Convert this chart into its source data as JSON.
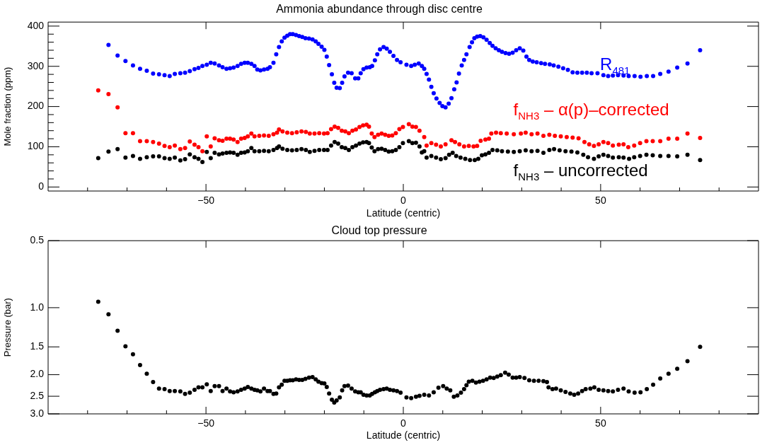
{
  "chart_data": [
    {
      "type": "scatter",
      "title": "Ammonia abundance through disc centre",
      "xlabel": "Latitude (centric)",
      "ylabel": "Mole fraction (ppm)",
      "marker": "circle",
      "xlim": [
        -90,
        90
      ],
      "ylim": [
        -10,
        410
      ],
      "xticks": [
        {
          "value": -80,
          "label": null
        },
        {
          "value": -70,
          "label": null
        },
        {
          "value": -60,
          "label": null
        },
        {
          "value": -50,
          "label": "−50"
        },
        {
          "value": -40,
          "label": null
        },
        {
          "value": -30,
          "label": null
        },
        {
          "value": -20,
          "label": null
        },
        {
          "value": -10,
          "label": null
        },
        {
          "value": 0,
          "label": "0"
        },
        {
          "value": 10,
          "label": null
        },
        {
          "value": 20,
          "label": null
        },
        {
          "value": 30,
          "label": null
        },
        {
          "value": 40,
          "label": null
        },
        {
          "value": 50,
          "label": "50"
        },
        {
          "value": 60,
          "label": null
        },
        {
          "value": 70,
          "label": null
        },
        {
          "value": 80,
          "label": null
        }
      ],
      "yticks": [
        0,
        {
          "value": 20,
          "label": null
        },
        {
          "value": 40,
          "label": null
        },
        {
          "value": 60,
          "label": null
        },
        {
          "value": 80,
          "label": null
        },
        100,
        {
          "value": 120,
          "label": null
        },
        {
          "value": 140,
          "label": null
        },
        {
          "value": 160,
          "label": null
        },
        {
          "value": 180,
          "label": null
        },
        200,
        {
          "value": 220,
          "label": null
        },
        {
          "value": 240,
          "label": null
        },
        {
          "value": 260,
          "label": null
        },
        {
          "value": 280,
          "label": null
        },
        300,
        {
          "value": 320,
          "label": null
        },
        {
          "value": 340,
          "label": null
        },
        {
          "value": 360,
          "label": null
        },
        {
          "value": 380,
          "label": null
        },
        400
      ],
      "series": [
        {
          "name": "R$_{481}$",
          "color": "#0000ff",
          "x": [
            -74.7,
            -72.4,
            -70.4,
            -68.5,
            -66.7,
            -65.0,
            -63.4,
            -61.9,
            -60.5,
            -59.2,
            -57.9,
            -56.5,
            -55.3,
            -54.1,
            -52.9,
            -51.9,
            -50.9,
            -49.8,
            -48.8,
            -47.8,
            -46.7,
            -45.8,
            -44.8,
            -43.9,
            -43.0,
            -42.0,
            -41.1,
            -40.2,
            -39.4,
            -38.5,
            -37.7,
            -37.0,
            -36.2,
            -35.3,
            -34.4,
            -33.8,
            -32.9,
            -32.2,
            -31.5,
            -30.8,
            -30.1,
            -29.4,
            -28.7,
            -28.0,
            -27.2,
            -26.4,
            -25.6,
            -24.8,
            -23.9,
            -23.0,
            -22.2,
            -21.5,
            -20.7,
            -20.0,
            -19.4,
            -18.8,
            -18.1,
            -17.5,
            -16.9,
            -16.1,
            -15.5,
            -14.9,
            -14.0,
            -13.1,
            -12.2,
            -11.4,
            -10.8,
            -10.1,
            -9.3,
            -8.5,
            -7.9,
            -7.2,
            -6.6,
            -5.9,
            -5.0,
            -4.2,
            -3.4,
            -2.5,
            -1.6,
            -0.7,
            0.8,
            2.0,
            2.9,
            3.9,
            4.7,
            5.3,
            5.9,
            6.5,
            7.1,
            7.7,
            8.4,
            9.2,
            9.9,
            10.7,
            11.5,
            12.2,
            12.9,
            13.5,
            14.1,
            14.8,
            15.4,
            16.0,
            16.8,
            17.4,
            18.0,
            18.7,
            19.5,
            20.3,
            21.1,
            21.9,
            22.6,
            23.4,
            24.2,
            25.0,
            25.9,
            26.8,
            27.7,
            28.6,
            29.5,
            30.4,
            31.2,
            31.9,
            32.8,
            33.8,
            34.9,
            35.9,
            37.1,
            38.1,
            39.3,
            40.5,
            41.7,
            42.9,
            44.1,
            45.3,
            46.5,
            47.7,
            49.2,
            50.7,
            51.9,
            53.1,
            54.4,
            55.8,
            57.1,
            58.6,
            60.1,
            61.7,
            63.3,
            65.1,
            67.2,
            69.4,
            72.0,
            75.2
          ],
          "values": [
            353,
            327,
            313,
            302,
            294,
            289,
            282,
            280,
            278,
            276,
            281,
            283,
            284,
            288,
            293,
            296,
            301,
            304,
            309,
            307,
            302,
            298,
            294,
            295,
            297,
            301,
            306,
            309,
            309,
            306,
            301,
            292,
            290,
            292,
            294,
            298,
            309,
            330,
            348,
            362,
            371,
            376,
            380,
            380,
            378,
            375,
            373,
            370,
            369,
            367,
            362,
            356,
            349,
            341,
            324,
            303,
            280,
            259,
            247,
            246,
            259,
            275,
            284,
            283,
            270,
            270,
            283,
            293,
            297,
            298,
            301,
            315,
            330,
            342,
            348,
            344,
            336,
            326,
            316,
            310,
            304,
            301,
            304,
            307,
            301,
            294,
            281,
            267,
            249,
            233,
            220,
            209,
            201,
            198,
            207,
            221,
            243,
            260,
            282,
            302,
            316,
            330,
            348,
            360,
            370,
            374,
            375,
            372,
            366,
            358,
            351,
            345,
            340,
            336,
            333,
            331,
            334,
            340,
            345,
            339,
            324,
            316,
            312,
            310,
            308,
            306,
            305,
            302,
            299,
            295,
            291,
            285,
            284,
            284,
            284,
            283,
            283,
            278,
            276,
            277,
            278,
            277,
            276,
            276,
            274,
            276,
            276,
            281,
            287,
            297,
            307,
            340
          ]
        },
        {
          "name": "f$_{NH3}$ – α(p)–corrected",
          "color": "#ff0000",
          "x": [
            -77.3,
            -74.7,
            -72.4,
            -70.4,
            -68.5,
            -66.7,
            -65.0,
            -63.4,
            -61.9,
            -60.5,
            -59.2,
            -57.9,
            -56.5,
            -55.3,
            -54.1,
            -52.9,
            -51.9,
            -50.9,
            -49.8,
            -48.8,
            -47.8,
            -46.7,
            -45.8,
            -44.8,
            -43.9,
            -43.0,
            -42.0,
            -41.1,
            -40.2,
            -39.4,
            -38.5,
            -37.7,
            -36.5,
            -35.3,
            -34.1,
            -32.9,
            -32.0,
            -31.5,
            -30.6,
            -29.4,
            -28.2,
            -27.0,
            -25.8,
            -24.7,
            -23.7,
            -22.5,
            -21.3,
            -20.1,
            -19.2,
            -18.3,
            -17.4,
            -16.5,
            -15.6,
            -14.7,
            -13.8,
            -12.9,
            -12.0,
            -11.1,
            -10.2,
            -9.3,
            -8.7,
            -8.0,
            -7.3,
            -6.4,
            -5.5,
            -4.6,
            -3.7,
            -2.8,
            -1.9,
            -1.0,
            -0.1,
            1.4,
            2.3,
            3.2,
            4.1,
            5.3,
            5.9,
            7.1,
            8.3,
            9.5,
            10.7,
            12.2,
            13.1,
            14.2,
            15.4,
            16.6,
            17.8,
            18.7,
            19.6,
            20.8,
            21.7,
            22.3,
            23.5,
            24.7,
            26.2,
            28.0,
            29.8,
            31.0,
            32.5,
            34.0,
            35.5,
            37.0,
            38.4,
            39.9,
            41.4,
            42.9,
            44.4,
            45.9,
            47.1,
            48.3,
            49.5,
            50.7,
            51.9,
            53.1,
            54.6,
            55.8,
            57.0,
            58.5,
            60.0,
            61.6,
            63.2,
            65.1,
            67.2,
            69.4,
            72.0,
            75.2
          ],
          "values": [
            240,
            231,
            198,
            134,
            134,
            114,
            114,
            112,
            108,
            102,
            99,
            103,
            94,
            97,
            113,
            105,
            99,
            89,
            126,
            101,
            121,
            116,
            115,
            120,
            120,
            118,
            112,
            120,
            122,
            126,
            133,
            126,
            127,
            128,
            127,
            131,
            135,
            143,
            138,
            135,
            134,
            136,
            138,
            137,
            133,
            133,
            134,
            133,
            134,
            144,
            150,
            147,
            140,
            138,
            134,
            140,
            143,
            149,
            153,
            155,
            150,
            133,
            124,
            130,
            133,
            130,
            127,
            128,
            134,
            144,
            149,
            156,
            150,
            149,
            140,
            124,
            103,
            109,
            105,
            101,
            106,
            116,
            112,
            106,
            101,
            102,
            101,
            102,
            115,
            118,
            120,
            133,
            135,
            134,
            133,
            131,
            133,
            135,
            131,
            133,
            127,
            130,
            127,
            126,
            124,
            123,
            121,
            112,
            106,
            102,
            106,
            112,
            109,
            103,
            105,
            106,
            99,
            103,
            109,
            114,
            114,
            114,
            120,
            120,
            133,
            122
          ]
        },
        {
          "name": "f$_{NH3}$ – uncorrected",
          "color": "#000000",
          "x": [
            -77.3,
            -74.7,
            -72.4,
            -70.4,
            -68.5,
            -66.7,
            -65.0,
            -63.4,
            -61.9,
            -60.5,
            -59.2,
            -57.9,
            -56.5,
            -55.3,
            -54.1,
            -52.9,
            -51.9,
            -50.9,
            -49.8,
            -48.8,
            -47.8,
            -46.7,
            -45.8,
            -44.8,
            -43.9,
            -43.0,
            -42.0,
            -41.1,
            -40.2,
            -39.4,
            -38.5,
            -37.7,
            -36.5,
            -35.3,
            -34.1,
            -32.9,
            -32.0,
            -31.5,
            -30.6,
            -29.4,
            -28.2,
            -27.0,
            -25.8,
            -24.7,
            -23.7,
            -22.5,
            -21.3,
            -20.1,
            -19.2,
            -18.3,
            -17.4,
            -16.5,
            -15.6,
            -14.7,
            -13.8,
            -12.9,
            -12.0,
            -11.1,
            -10.2,
            -9.3,
            -8.7,
            -8.0,
            -7.3,
            -6.4,
            -5.5,
            -4.6,
            -3.7,
            -2.8,
            -1.9,
            -1.0,
            -0.1,
            1.4,
            2.3,
            3.2,
            4.1,
            4.7,
            5.3,
            5.9,
            7.1,
            8.3,
            9.5,
            10.7,
            11.6,
            12.5,
            13.4,
            14.5,
            15.7,
            16.9,
            18.1,
            19.0,
            19.9,
            20.8,
            21.7,
            22.6,
            23.8,
            25.0,
            26.5,
            28.0,
            29.5,
            31.0,
            32.5,
            34.0,
            35.5,
            37.0,
            38.2,
            39.6,
            41.1,
            42.6,
            44.1,
            45.6,
            46.8,
            48.3,
            49.5,
            50.7,
            51.9,
            53.1,
            54.6,
            55.8,
            57.2,
            58.5,
            60.0,
            61.6,
            63.2,
            65.1,
            67.2,
            69.4,
            72.0,
            75.2
          ],
          "values": [
            72,
            88,
            94,
            73,
            77,
            70,
            74,
            76,
            76,
            72,
            70,
            73,
            66,
            69,
            81,
            74,
            70,
            62,
            87,
            72,
            85,
            81,
            83,
            85,
            86,
            85,
            80,
            85,
            86,
            89,
            97,
            89,
            89,
            90,
            89,
            92,
            97,
            101,
            95,
            92,
            91,
            92,
            94,
            92,
            87,
            90,
            92,
            92,
            92,
            103,
            112,
            108,
            99,
            97,
            92,
            99,
            103,
            108,
            111,
            112,
            109,
            98,
            89,
            94,
            95,
            92,
            88,
            89,
            92,
            99,
            109,
            114,
            109,
            110,
            101,
            86,
            89,
            73,
            77,
            73,
            69,
            72,
            80,
            85,
            77,
            73,
            70,
            67,
            67,
            70,
            79,
            81,
            85,
            92,
            91,
            89,
            88,
            87,
            89,
            91,
            89,
            90,
            85,
            92,
            94,
            91,
            89,
            88,
            86,
            80,
            74,
            70,
            76,
            80,
            77,
            73,
            74,
            73,
            70,
            74,
            77,
            80,
            79,
            77,
            77,
            76,
            80,
            67
          ]
        }
      ]
    },
    {
      "type": "scatter",
      "title": "Cloud top pressure",
      "xlabel": "Latitude (centric)",
      "ylabel": "Pressure (bar)",
      "marker": "circle",
      "log": "y",
      "xlim": [
        -90,
        90
      ],
      "ylim": [
        3.0,
        0.5
      ],
      "xticks": [
        {
          "value": -80,
          "label": null
        },
        {
          "value": -70,
          "label": null
        },
        {
          "value": -60,
          "label": null
        },
        {
          "value": -50,
          "label": "−50"
        },
        {
          "value": -40,
          "label": null
        },
        {
          "value": -30,
          "label": null
        },
        {
          "value": -20,
          "label": null
        },
        {
          "value": -10,
          "label": null
        },
        {
          "value": 0,
          "label": "0"
        },
        {
          "value": 10,
          "label": null
        },
        {
          "value": 20,
          "label": null
        },
        {
          "value": 30,
          "label": null
        },
        {
          "value": 40,
          "label": null
        },
        {
          "value": 50,
          "label": "50"
        },
        {
          "value": 60,
          "label": null
        },
        {
          "value": 70,
          "label": null
        },
        {
          "value": 80,
          "label": null
        }
      ],
      "yticks": [
        0.5,
        {
          "value": 1,
          "label": "1.0"
        },
        1.5,
        {
          "value": 2,
          "label": "2.0"
        },
        2.5,
        {
          "value": 3,
          "label": "3.0"
        }
      ],
      "series": [
        {
          "color": "#000000",
          "x": [
            -77.3,
            -74.7,
            -72.4,
            -70.4,
            -68.5,
            -66.7,
            -65.0,
            -63.4,
            -61.9,
            -60.5,
            -59.2,
            -57.9,
            -56.5,
            -55.3,
            -54.1,
            -52.9,
            -51.9,
            -50.9,
            -49.8,
            -48.8,
            -47.8,
            -46.7,
            -45.8,
            -44.8,
            -43.9,
            -43.0,
            -42.0,
            -41.1,
            -40.2,
            -39.4,
            -38.5,
            -37.7,
            -37.0,
            -36.2,
            -35.3,
            -34.4,
            -33.8,
            -32.9,
            -32.2,
            -31.5,
            -30.8,
            -30.1,
            -29.4,
            -28.7,
            -28.0,
            -27.2,
            -26.4,
            -25.6,
            -24.8,
            -23.9,
            -23.0,
            -22.2,
            -21.5,
            -20.7,
            -20.0,
            -19.4,
            -18.8,
            -18.1,
            -17.5,
            -16.9,
            -16.1,
            -15.5,
            -14.9,
            -14.0,
            -13.1,
            -12.2,
            -11.4,
            -10.8,
            -10.1,
            -9.3,
            -8.5,
            -7.9,
            -7.2,
            -6.6,
            -5.9,
            -5.0,
            -4.2,
            -3.4,
            -2.5,
            -1.6,
            -0.7,
            0.8,
            2.0,
            3.2,
            4.1,
            5.3,
            6.5,
            7.7,
            8.9,
            10.1,
            11.0,
            11.9,
            12.8,
            13.7,
            14.6,
            15.4,
            16.0,
            16.6,
            17.5,
            18.4,
            19.3,
            20.2,
            21.1,
            22.0,
            22.9,
            23.8,
            24.7,
            25.8,
            26.7,
            27.7,
            28.6,
            29.5,
            30.7,
            31.9,
            33.1,
            34.3,
            35.5,
            36.4,
            36.8,
            37.8,
            38.7,
            39.9,
            41.1,
            42.3,
            43.3,
            44.3,
            45.3,
            46.2,
            47.4,
            48.4,
            49.5,
            50.7,
            51.9,
            53.1,
            54.4,
            55.8,
            57.1,
            58.6,
            60.1,
            61.7,
            63.3,
            65.1,
            67.2,
            69.4,
            72.0,
            75.2
          ],
          "values": [
            0.94,
            1.07,
            1.27,
            1.49,
            1.62,
            1.81,
            1.98,
            2.16,
            2.31,
            2.32,
            2.37,
            2.37,
            2.38,
            2.44,
            2.41,
            2.34,
            2.28,
            2.28,
            2.21,
            2.37,
            2.25,
            2.25,
            2.37,
            2.31,
            2.38,
            2.4,
            2.38,
            2.34,
            2.31,
            2.27,
            2.31,
            2.34,
            2.35,
            2.38,
            2.31,
            2.37,
            2.37,
            2.44,
            2.43,
            2.28,
            2.22,
            2.13,
            2.13,
            2.12,
            2.12,
            2.1,
            2.11,
            2.11,
            2.09,
            2.06,
            2.05,
            2.1,
            2.15,
            2.18,
            2.19,
            2.27,
            2.43,
            2.59,
            2.67,
            2.61,
            2.53,
            2.35,
            2.25,
            2.24,
            2.31,
            2.38,
            2.4,
            2.4,
            2.46,
            2.48,
            2.48,
            2.44,
            2.4,
            2.37,
            2.34,
            2.32,
            2.31,
            2.34,
            2.35,
            2.37,
            2.41,
            2.53,
            2.55,
            2.51,
            2.49,
            2.46,
            2.48,
            2.4,
            2.29,
            2.25,
            2.31,
            2.35,
            2.51,
            2.48,
            2.41,
            2.32,
            2.23,
            2.15,
            2.13,
            2.17,
            2.15,
            2.13,
            2.1,
            2.06,
            2.07,
            2.04,
            2.01,
            1.96,
            2.0,
            2.06,
            2.06,
            2.05,
            2.07,
            2.12,
            2.13,
            2.13,
            2.14,
            2.16,
            2.28,
            2.32,
            2.31,
            2.35,
            2.39,
            2.43,
            2.46,
            2.43,
            2.37,
            2.32,
            2.31,
            2.28,
            2.34,
            2.35,
            2.37,
            2.38,
            2.34,
            2.31,
            2.38,
            2.41,
            2.4,
            2.32,
            2.22,
            2.08,
            1.98,
            1.88,
            1.74,
            1.5
          ]
        }
      ]
    }
  ]
}
